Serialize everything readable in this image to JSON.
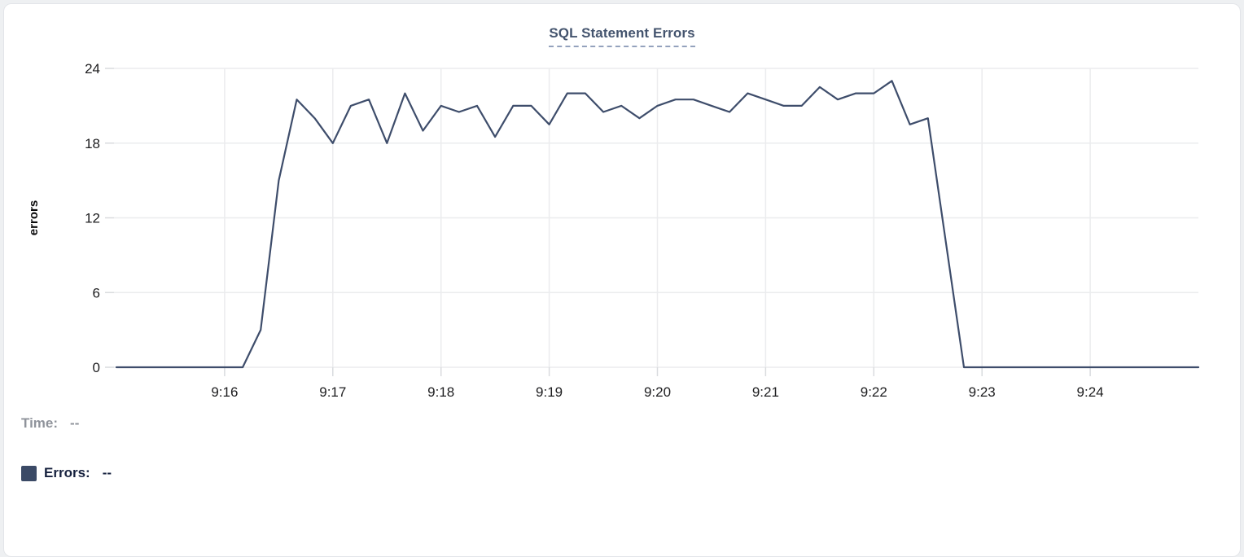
{
  "card": {
    "type": "chart-panel"
  },
  "header": {
    "title": "SQL Statement Errors"
  },
  "footer": {
    "time_label": "Time:",
    "time_value": "--",
    "errors_label": "Errors:",
    "errors_value": "--",
    "swatch_color": "#3b4a66"
  },
  "colors": {
    "line": "#3e4d6b",
    "grid": "#ebecee",
    "tick": "#d9dbde",
    "axis_text": "#1d1d1f",
    "title_text": "#44546e",
    "title_underline": "#94a2bd",
    "time_text": "#8f939b",
    "errors_text": "#16213e",
    "card_border": "#e3e5e9",
    "card_bg": "#ffffff"
  },
  "chart_data": {
    "type": "line",
    "title": "SQL Statement Errors",
    "xlabel": "",
    "ylabel": "errors",
    "ylim": [
      0,
      24
    ],
    "yticks": [
      0,
      6,
      12,
      18,
      24
    ],
    "xticks": [
      "9:16",
      "9:17",
      "9:18",
      "9:19",
      "9:20",
      "9:21",
      "9:22",
      "9:23",
      "9:24"
    ],
    "x_range": [
      "9:15:00",
      "9:25:00"
    ],
    "grid": true,
    "markers": false,
    "legend_position": "bottom-left",
    "series": [
      {
        "name": "Errors",
        "color": "#3e4d6b",
        "times": [
          "9:15:00",
          "9:15:10",
          "9:15:20",
          "9:15:30",
          "9:15:40",
          "9:15:50",
          "9:16:00",
          "9:16:10",
          "9:16:20",
          "9:16:30",
          "9:16:40",
          "9:16:50",
          "9:17:00",
          "9:17:10",
          "9:17:20",
          "9:17:30",
          "9:17:40",
          "9:17:50",
          "9:18:00",
          "9:18:10",
          "9:18:20",
          "9:18:30",
          "9:18:40",
          "9:18:50",
          "9:19:00",
          "9:19:10",
          "9:19:20",
          "9:19:30",
          "9:19:40",
          "9:19:50",
          "9:20:00",
          "9:20:10",
          "9:20:20",
          "9:20:30",
          "9:20:40",
          "9:20:50",
          "9:21:00",
          "9:21:10",
          "9:21:20",
          "9:21:30",
          "9:21:40",
          "9:21:50",
          "9:22:00",
          "9:22:10",
          "9:22:20",
          "9:22:30",
          "9:22:40",
          "9:22:50",
          "9:23:00",
          "9:23:10",
          "9:23:20",
          "9:23:30",
          "9:23:40",
          "9:23:50",
          "9:24:00",
          "9:24:10",
          "9:24:20",
          "9:24:30",
          "9:24:40",
          "9:24:50",
          "9:25:00"
        ],
        "values": [
          0,
          0,
          0,
          0,
          0,
          0,
          0,
          0,
          3,
          15,
          21.5,
          20,
          18,
          21,
          21.5,
          18,
          22,
          19,
          21,
          20.5,
          21,
          18.5,
          21,
          21,
          19.5,
          22,
          22,
          20.5,
          21,
          20,
          21,
          21.5,
          21.5,
          21,
          20.5,
          22,
          21.5,
          21,
          21,
          22.5,
          21.5,
          22,
          22,
          23,
          19.5,
          20,
          10,
          0,
          0,
          0,
          0,
          0,
          0,
          0,
          0,
          0,
          0,
          0,
          0,
          0,
          0
        ]
      }
    ]
  }
}
